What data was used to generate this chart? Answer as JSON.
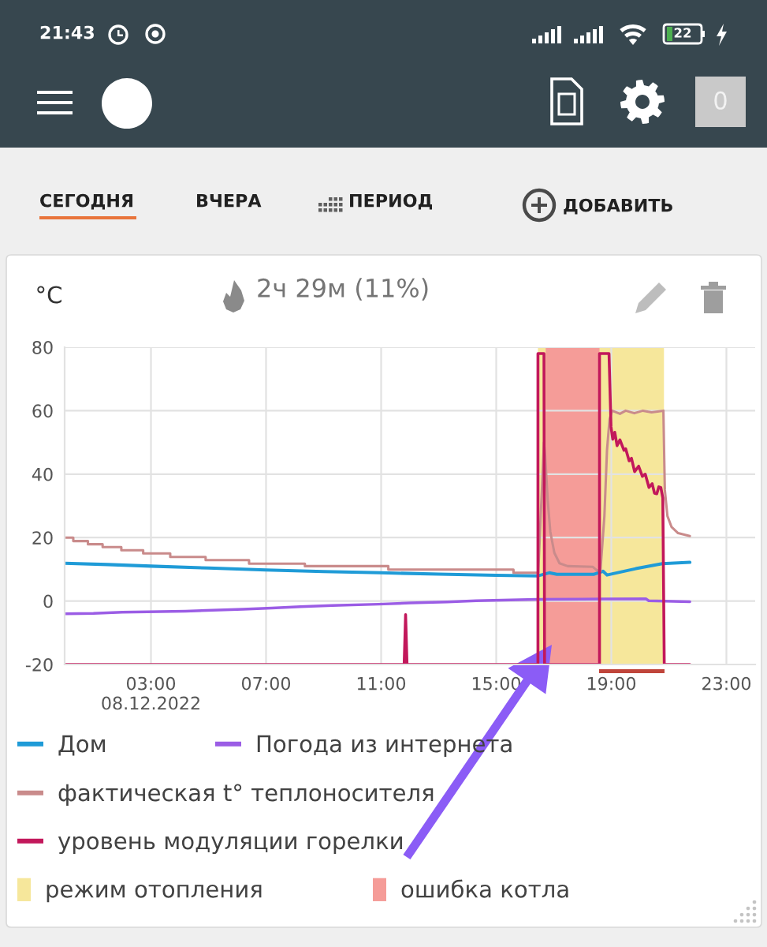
{
  "chart_data": {
    "type": "line",
    "title": "2ч 29м (11%)",
    "ylabel": "°C",
    "annotations": [
      "21:43",
      "22",
      "0",
      "СЕГОДНЯ",
      "ВЧЕРА",
      "ПЕРИОД",
      "ДОБАВИТЬ"
    ],
    "xlim": [
      0,
      24
    ],
    "xticks": [
      {
        "value": 3,
        "label": "03:00\n08.12.2022"
      },
      {
        "value": 7,
        "label": "07:00"
      },
      {
        "value": 11,
        "label": "11:00"
      },
      {
        "value": 15,
        "label": "15:00"
      },
      {
        "value": 19,
        "label": "19:00"
      },
      {
        "value": 23,
        "label": "23:00"
      }
    ],
    "ylim": [
      -20,
      80
    ],
    "yticks": [
      -20,
      0,
      20,
      40,
      60,
      80
    ],
    "grid": true,
    "legend": "bottom",
    "series": [
      {
        "name": "Дом",
        "color": "#1f9bd7",
        "x": [
          0,
          1.5,
          3,
          5,
          7,
          9,
          11,
          13,
          15,
          16.43,
          16.84,
          17.11,
          18.38,
          18.71,
          18.85,
          19.85,
          20.77,
          21.73
        ],
        "values": [
          11.9,
          11.5,
          11.0,
          10.4,
          9.8,
          9.3,
          8.9,
          8.5,
          8.1,
          7.9,
          8.9,
          8.4,
          8.4,
          9.4,
          8.2,
          10.2,
          11.8,
          12.2
        ]
      },
      {
        "name": "Погода из интернета",
        "color": "#9b5de5",
        "x": [
          0,
          1,
          2,
          4.2,
          6.2,
          7.2,
          8.2,
          9.3,
          10.9,
          12,
          13.3,
          14.3,
          16.4,
          18,
          20.2,
          20.3,
          21.73
        ],
        "values": [
          -4.0,
          -3.9,
          -3.5,
          -3.2,
          -2.6,
          -2.2,
          -1.8,
          -1.4,
          -1.0,
          -0.6,
          -0.3,
          0.1,
          0.5,
          0.6,
          0.7,
          0.1,
          -0.2
        ]
      },
      {
        "name": "фактическая t° теплоносителя",
        "color": "#c98b8b",
        "x": [
          0,
          0.3,
          0.3,
          0.81,
          0.81,
          1.32,
          1.32,
          1.97,
          1.97,
          2.73,
          2.73,
          3.67,
          3.67,
          4.9,
          4.9,
          6.41,
          6.41,
          8.35,
          8.35,
          11.25,
          11.25,
          15.6,
          15.6,
          16.46,
          16.66,
          16.7,
          16.79,
          16.88,
          17.02,
          17.2,
          17.48,
          18.35,
          18.48,
          18.62,
          18.76,
          18.85,
          18.94,
          19.03,
          19.3,
          19.5,
          19.8,
          20.1,
          20.4,
          20.81,
          20.86,
          20.95,
          21.09,
          21.32,
          21.73
        ],
        "values": [
          20,
          20,
          18.9,
          18.9,
          17.9,
          17.9,
          17,
          17,
          16,
          16,
          15,
          15,
          13.9,
          13.9,
          12.9,
          12.9,
          11.8,
          11.8,
          11,
          11,
          9.9,
          9.9,
          8.9,
          8.9,
          50,
          45.8,
          31.7,
          21.8,
          15.2,
          11.9,
          11,
          10.8,
          9.8,
          9.4,
          26.8,
          47.5,
          57.4,
          60,
          59,
          60,
          59.2,
          60,
          59.5,
          60,
          35,
          26.8,
          23.4,
          21.4,
          20.5
        ]
      },
      {
        "name": "уровень модуляции горелки",
        "color": "#c2185b",
        "x": [
          0,
          11.8,
          11.85,
          11.9,
          16.45,
          16.45,
          16.66,
          16.68,
          18.59,
          18.59,
          18.92,
          18.99,
          19.05,
          19.12,
          19.2,
          19.3,
          19.44,
          19.5,
          19.62,
          19.7,
          19.81,
          19.95,
          20.08,
          20.18,
          20.31,
          20.42,
          20.5,
          20.58,
          20.65,
          20.72,
          20.79,
          20.84,
          21.73
        ],
        "values": [
          -20,
          -20,
          -4.3,
          -20,
          -20,
          78,
          78,
          -20,
          -20,
          78,
          78,
          54.9,
          51,
          53.2,
          49,
          50.8,
          47.5,
          48,
          44.2,
          45,
          40.8,
          42.5,
          39.3,
          40,
          35.8,
          37,
          34,
          33.8,
          36,
          35.8,
          32.5,
          -20,
          -20
        ]
      }
    ],
    "bands": [
      {
        "axis": "x",
        "from": 16.45,
        "to": 20.83,
        "label": "режим отопления",
        "color": "#f6e79b"
      },
      {
        "axis": "x",
        "from": 16.72,
        "to": 18.59,
        "label": "ошибка котла",
        "color": "#f59c98"
      }
    ]
  }
}
